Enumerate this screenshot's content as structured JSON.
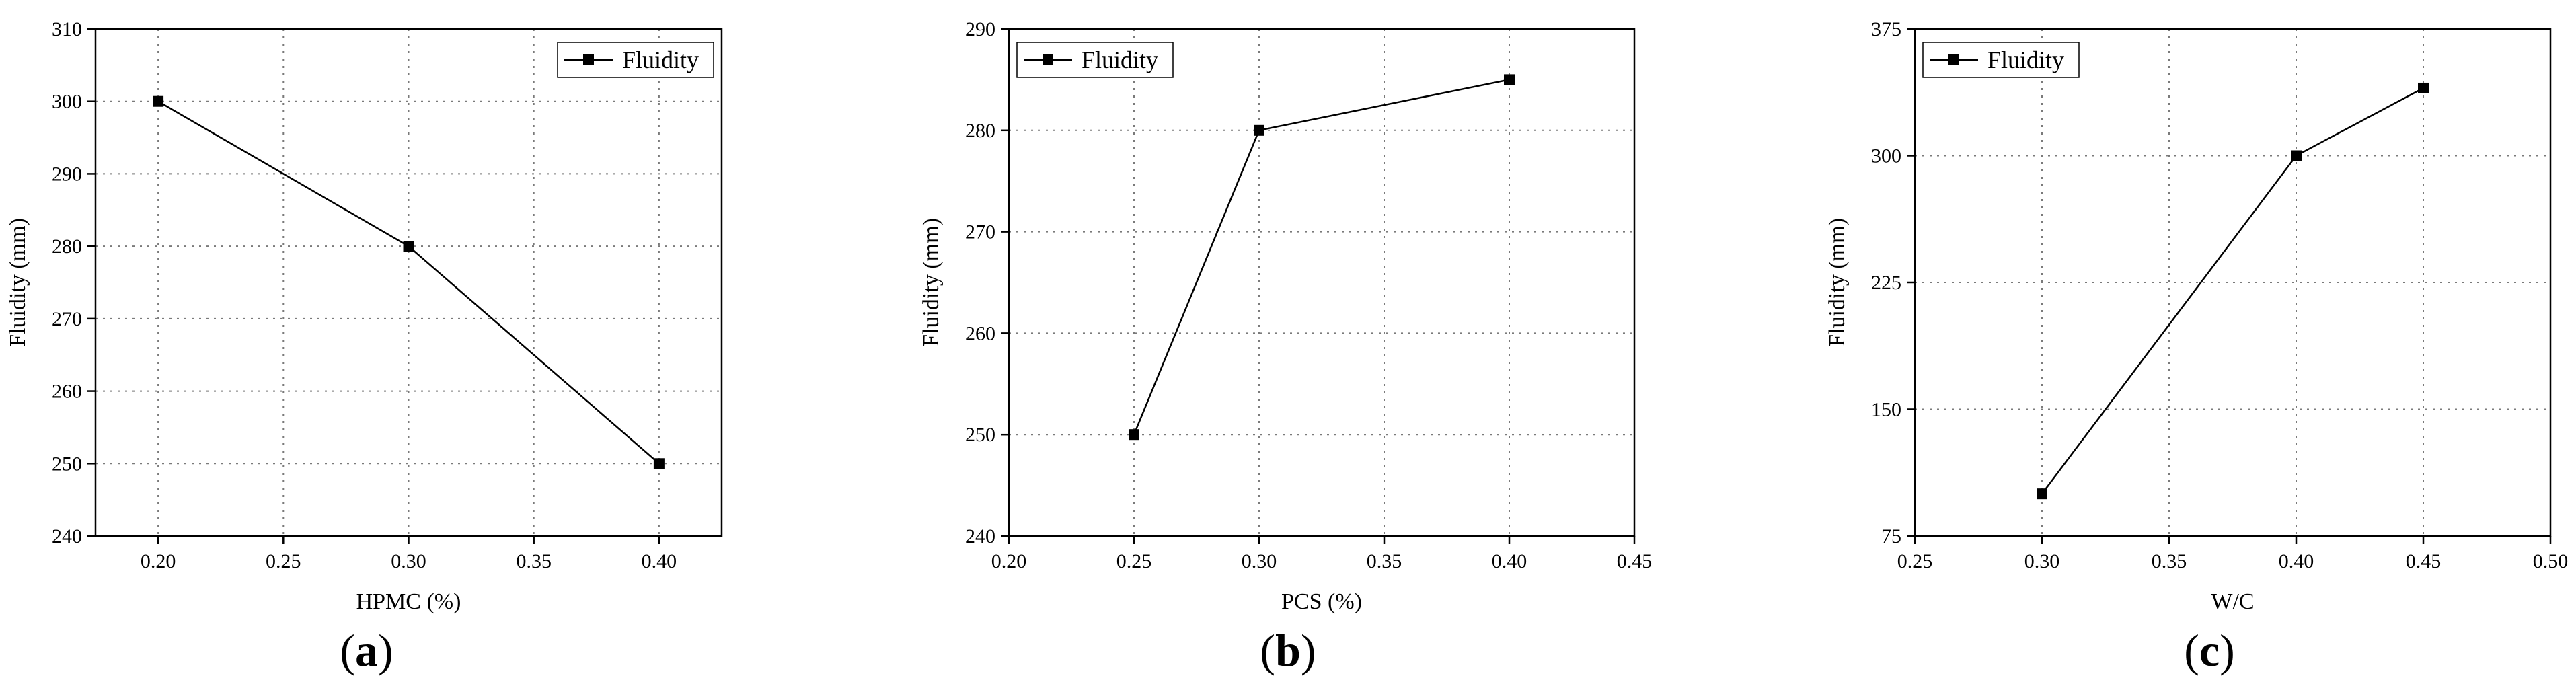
{
  "chart_data": [
    {
      "type": "line",
      "panel_label": "a",
      "xlabel": "HPMC (%)",
      "ylabel": "Fluidity (mm)",
      "xlim": [
        0.175,
        0.425
      ],
      "ylim": [
        240,
        310
      ],
      "xticks": [
        0.2,
        0.25,
        0.3,
        0.35,
        0.4
      ],
      "xtick_labels": [
        "0.20",
        "0.25",
        "0.30",
        "0.35",
        "0.40"
      ],
      "yticks": [
        240,
        250,
        260,
        270,
        280,
        290,
        300,
        310
      ],
      "ytick_labels": [
        "240",
        "250",
        "260",
        "270",
        "280",
        "290",
        "300",
        "310"
      ],
      "grid": true,
      "legend_position": "top-right",
      "series": [
        {
          "name": "Fluidity",
          "x": [
            0.2,
            0.3,
            0.4
          ],
          "y": [
            300,
            280,
            250
          ]
        }
      ]
    },
    {
      "type": "line",
      "panel_label": "b",
      "xlabel": "PCS (%)",
      "ylabel": "Fluidity (mm)",
      "xlim": [
        0.2,
        0.45
      ],
      "ylim": [
        240,
        290
      ],
      "xticks": [
        0.2,
        0.25,
        0.3,
        0.35,
        0.4,
        0.45
      ],
      "xtick_labels": [
        "0.20",
        "0.25",
        "0.30",
        "0.35",
        "0.40",
        "0.45"
      ],
      "yticks": [
        240,
        250,
        260,
        270,
        280,
        290
      ],
      "ytick_labels": [
        "240",
        "250",
        "260",
        "270",
        "280",
        "290"
      ],
      "grid": true,
      "legend_position": "top-left",
      "series": [
        {
          "name": "Fluidity",
          "x": [
            0.25,
            0.3,
            0.4
          ],
          "y": [
            250,
            280,
            285
          ]
        }
      ]
    },
    {
      "type": "line",
      "panel_label": "c",
      "xlabel": "W/C",
      "ylabel": "Fluidity (mm)",
      "xlim": [
        0.25,
        0.5
      ],
      "ylim": [
        75,
        375
      ],
      "xticks": [
        0.25,
        0.3,
        0.35,
        0.4,
        0.45,
        0.5
      ],
      "xtick_labels": [
        "0.25",
        "0.30",
        "0.35",
        "0.40",
        "0.45",
        "0.50"
      ],
      "yticks": [
        75,
        150,
        225,
        300,
        375
      ],
      "ytick_labels": [
        "75",
        "150",
        "225",
        "300",
        "375"
      ],
      "grid": true,
      "legend_position": "top-left",
      "series": [
        {
          "name": "Fluidity",
          "x": [
            0.3,
            0.4,
            0.45
          ],
          "y": [
            100,
            300,
            340
          ]
        }
      ]
    }
  ]
}
